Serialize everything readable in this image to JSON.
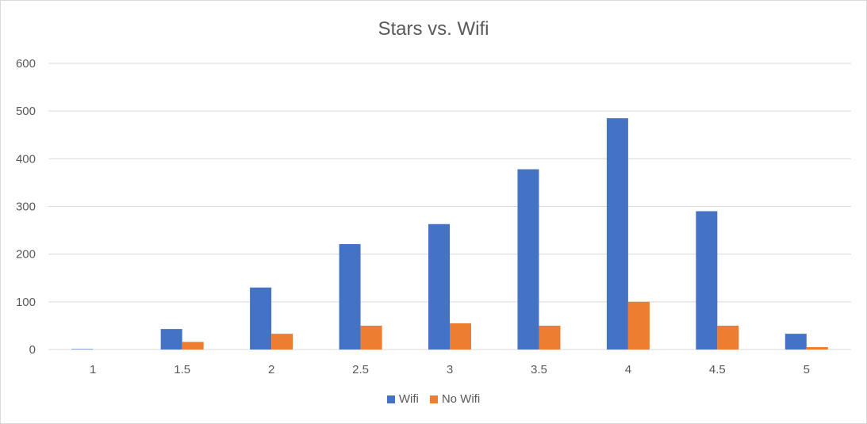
{
  "chart_data": {
    "type": "bar",
    "title": "Stars vs. Wifi",
    "categories": [
      "1",
      "1.5",
      "2",
      "2.5",
      "3",
      "3.5",
      "4",
      "4.5",
      "5"
    ],
    "series": [
      {
        "name": "Wifi",
        "color": "#4472C4",
        "values": [
          1,
          43,
          130,
          221,
          263,
          378,
          485,
          290,
          33
        ]
      },
      {
        "name": "No Wifi",
        "color": "#ED7D31",
        "values": [
          0,
          16,
          33,
          50,
          55,
          50,
          100,
          50,
          5
        ]
      }
    ],
    "ylim": [
      0,
      600
    ],
    "yticks": [
      "0",
      "100",
      "200",
      "300",
      "400",
      "500",
      "600"
    ],
    "grid": true,
    "legend": "bottom"
  }
}
